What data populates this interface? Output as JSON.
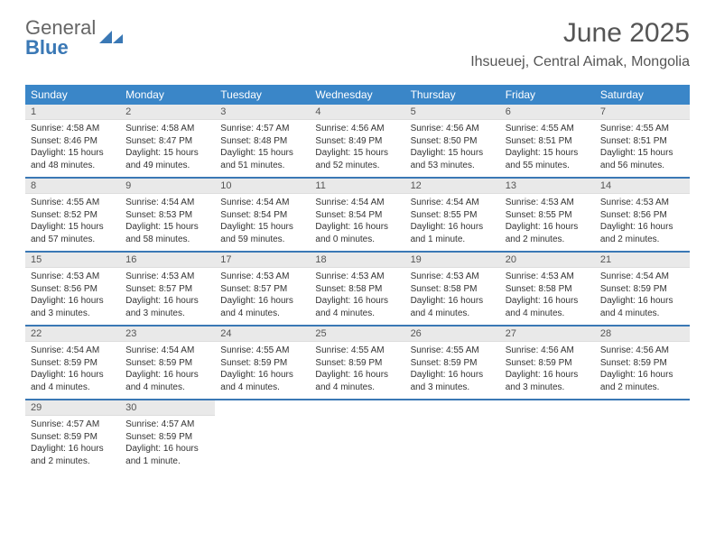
{
  "logo": {
    "line1": "General",
    "line2": "Blue",
    "mark_color": "#3a78b5"
  },
  "title": "June 2025",
  "location": "Ihsueuej, Central Aimak, Mongolia",
  "colors": {
    "header_bar": "#3a86c8",
    "header_text": "#ffffff",
    "daynum_bg": "#e9e9e9",
    "week_divider": "#3a78b5",
    "body_text": "#333333",
    "title_text": "#555555"
  },
  "weekdays": [
    "Sunday",
    "Monday",
    "Tuesday",
    "Wednesday",
    "Thursday",
    "Friday",
    "Saturday"
  ],
  "weeks": [
    [
      {
        "n": "1",
        "sr": "4:58 AM",
        "ss": "8:46 PM",
        "dl": "15 hours and 48 minutes."
      },
      {
        "n": "2",
        "sr": "4:58 AM",
        "ss": "8:47 PM",
        "dl": "15 hours and 49 minutes."
      },
      {
        "n": "3",
        "sr": "4:57 AM",
        "ss": "8:48 PM",
        "dl": "15 hours and 51 minutes."
      },
      {
        "n": "4",
        "sr": "4:56 AM",
        "ss": "8:49 PM",
        "dl": "15 hours and 52 minutes."
      },
      {
        "n": "5",
        "sr": "4:56 AM",
        "ss": "8:50 PM",
        "dl": "15 hours and 53 minutes."
      },
      {
        "n": "6",
        "sr": "4:55 AM",
        "ss": "8:51 PM",
        "dl": "15 hours and 55 minutes."
      },
      {
        "n": "7",
        "sr": "4:55 AM",
        "ss": "8:51 PM",
        "dl": "15 hours and 56 minutes."
      }
    ],
    [
      {
        "n": "8",
        "sr": "4:55 AM",
        "ss": "8:52 PM",
        "dl": "15 hours and 57 minutes."
      },
      {
        "n": "9",
        "sr": "4:54 AM",
        "ss": "8:53 PM",
        "dl": "15 hours and 58 minutes."
      },
      {
        "n": "10",
        "sr": "4:54 AM",
        "ss": "8:54 PM",
        "dl": "15 hours and 59 minutes."
      },
      {
        "n": "11",
        "sr": "4:54 AM",
        "ss": "8:54 PM",
        "dl": "16 hours and 0 minutes."
      },
      {
        "n": "12",
        "sr": "4:54 AM",
        "ss": "8:55 PM",
        "dl": "16 hours and 1 minute."
      },
      {
        "n": "13",
        "sr": "4:53 AM",
        "ss": "8:55 PM",
        "dl": "16 hours and 2 minutes."
      },
      {
        "n": "14",
        "sr": "4:53 AM",
        "ss": "8:56 PM",
        "dl": "16 hours and 2 minutes."
      }
    ],
    [
      {
        "n": "15",
        "sr": "4:53 AM",
        "ss": "8:56 PM",
        "dl": "16 hours and 3 minutes."
      },
      {
        "n": "16",
        "sr": "4:53 AM",
        "ss": "8:57 PM",
        "dl": "16 hours and 3 minutes."
      },
      {
        "n": "17",
        "sr": "4:53 AM",
        "ss": "8:57 PM",
        "dl": "16 hours and 4 minutes."
      },
      {
        "n": "18",
        "sr": "4:53 AM",
        "ss": "8:58 PM",
        "dl": "16 hours and 4 minutes."
      },
      {
        "n": "19",
        "sr": "4:53 AM",
        "ss": "8:58 PM",
        "dl": "16 hours and 4 minutes."
      },
      {
        "n": "20",
        "sr": "4:53 AM",
        "ss": "8:58 PM",
        "dl": "16 hours and 4 minutes."
      },
      {
        "n": "21",
        "sr": "4:54 AM",
        "ss": "8:59 PM",
        "dl": "16 hours and 4 minutes."
      }
    ],
    [
      {
        "n": "22",
        "sr": "4:54 AM",
        "ss": "8:59 PM",
        "dl": "16 hours and 4 minutes."
      },
      {
        "n": "23",
        "sr": "4:54 AM",
        "ss": "8:59 PM",
        "dl": "16 hours and 4 minutes."
      },
      {
        "n": "24",
        "sr": "4:55 AM",
        "ss": "8:59 PM",
        "dl": "16 hours and 4 minutes."
      },
      {
        "n": "25",
        "sr": "4:55 AM",
        "ss": "8:59 PM",
        "dl": "16 hours and 4 minutes."
      },
      {
        "n": "26",
        "sr": "4:55 AM",
        "ss": "8:59 PM",
        "dl": "16 hours and 3 minutes."
      },
      {
        "n": "27",
        "sr": "4:56 AM",
        "ss": "8:59 PM",
        "dl": "16 hours and 3 minutes."
      },
      {
        "n": "28",
        "sr": "4:56 AM",
        "ss": "8:59 PM",
        "dl": "16 hours and 2 minutes."
      }
    ],
    [
      {
        "n": "29",
        "sr": "4:57 AM",
        "ss": "8:59 PM",
        "dl": "16 hours and 2 minutes."
      },
      {
        "n": "30",
        "sr": "4:57 AM",
        "ss": "8:59 PM",
        "dl": "16 hours and 1 minute."
      },
      null,
      null,
      null,
      null,
      null
    ]
  ],
  "labels": {
    "sunrise": "Sunrise:",
    "sunset": "Sunset:",
    "daylight": "Daylight:"
  }
}
